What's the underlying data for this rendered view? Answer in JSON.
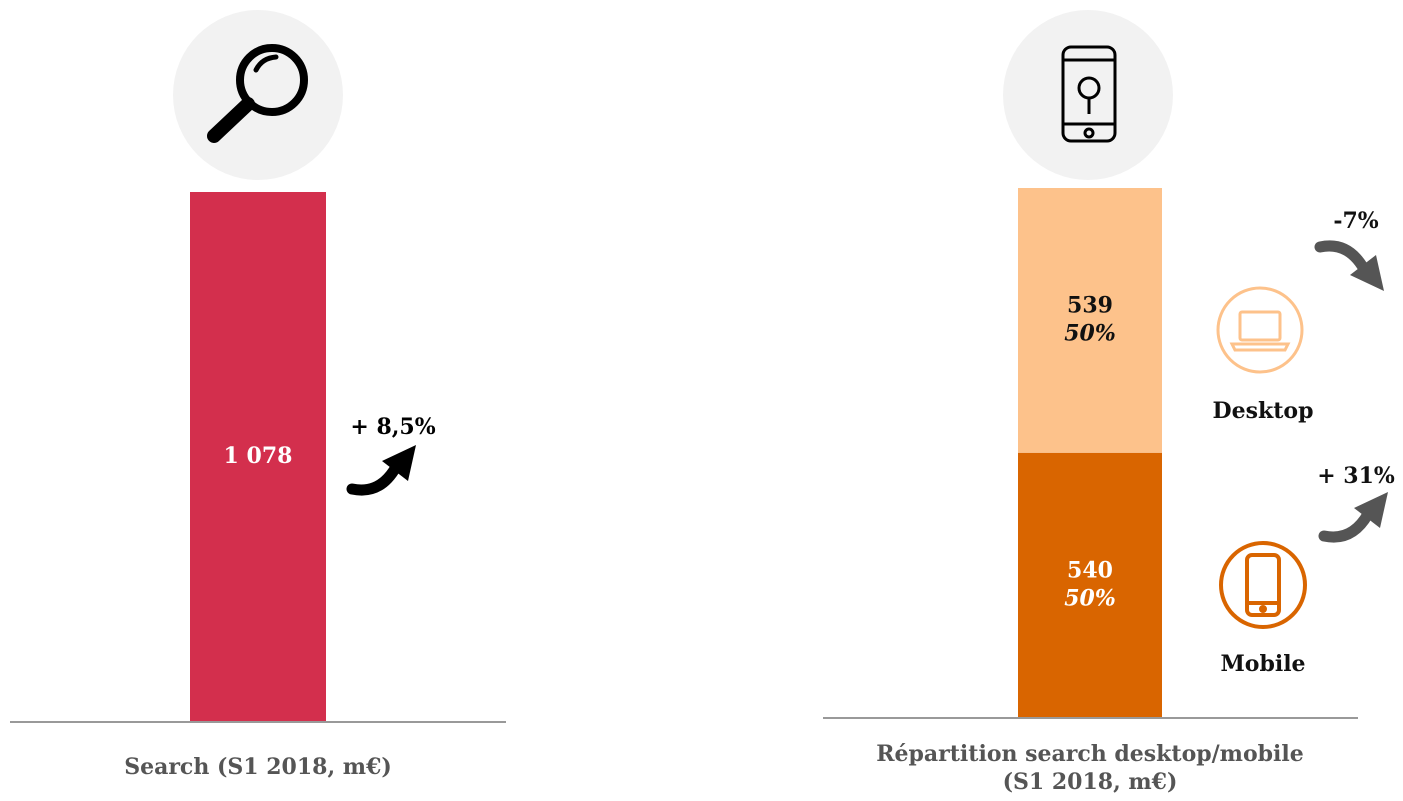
{
  "chart_data": [
    {
      "type": "bar",
      "title": [
        "Search (S1 2018, m€)"
      ],
      "categories": [
        null
      ],
      "values": [
        1078
      ],
      "value_labels": [
        "1 078"
      ],
      "color": "#d32f4d",
      "change": 8.5,
      "change_label": "+ 8,5%"
    },
    {
      "type": "stacked_bar",
      "title": [
        "Répartition search desktop/mobile",
        "(S1 2018, m€)"
      ],
      "categories": [
        null
      ],
      "series": [
        {
          "name": "Mobile",
          "color": "#d96500",
          "values": [
            540
          ],
          "share": [
            50
          ],
          "share_labels": [
            "50%"
          ],
          "change": 31,
          "change_label": "+ 31%"
        },
        {
          "name": "Desktop",
          "color": "#fdc28b",
          "values": [
            539
          ],
          "share": [
            50
          ],
          "share_labels": [
            "50%"
          ],
          "change": -7,
          "change_label": "-7%"
        }
      ]
    }
  ]
}
